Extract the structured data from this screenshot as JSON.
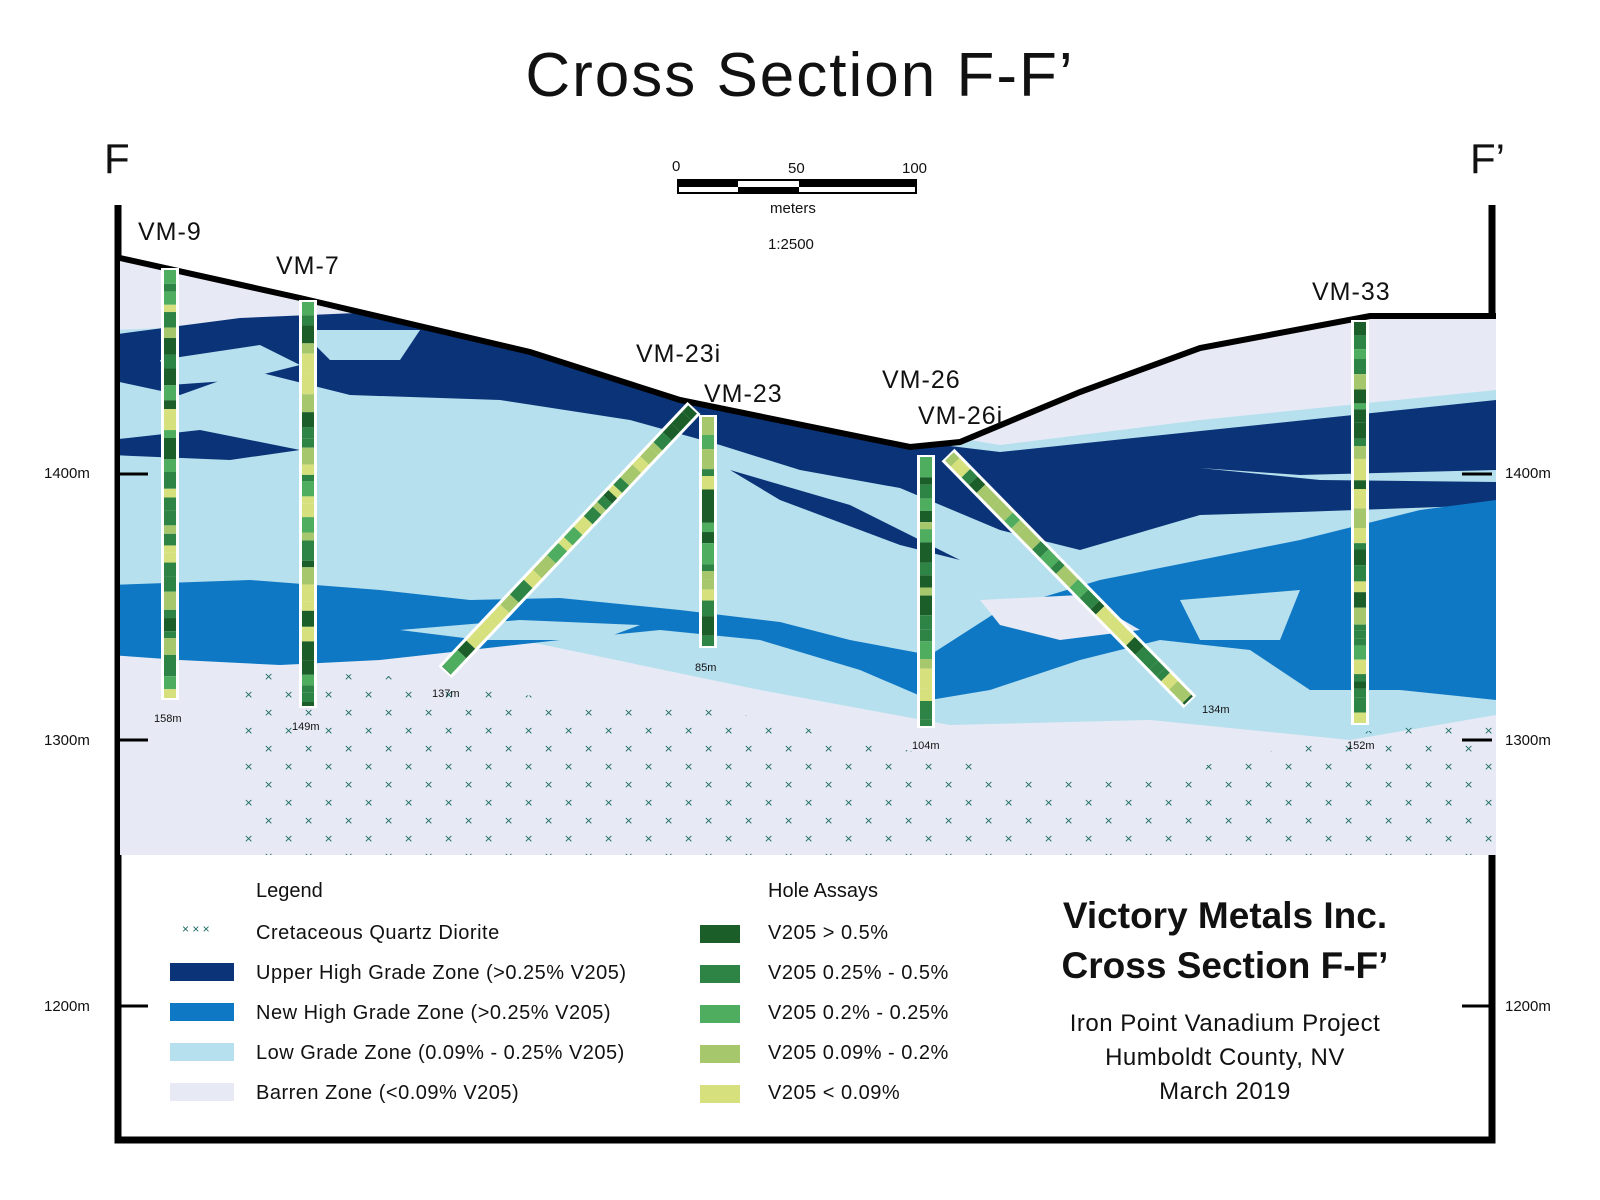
{
  "title": "Cross Section F-F’",
  "corners": {
    "left": "F",
    "right": "F’"
  },
  "scale": {
    "ticks": [
      "0",
      "50",
      "100"
    ],
    "unit": "meters",
    "ratio": "1:2500"
  },
  "elevations": [
    "1400m",
    "1300m",
    "1200m"
  ],
  "holes": [
    {
      "name": "VM-9",
      "depth": "158m"
    },
    {
      "name": "VM-7",
      "depth": "149m"
    },
    {
      "name": "VM-23i",
      "depth": "137m"
    },
    {
      "name": "VM-23",
      "depth": "85m"
    },
    {
      "name": "VM-26",
      "depth": "104m"
    },
    {
      "name": "VM-26i",
      "depth": "134m"
    },
    {
      "name": "VM-33",
      "depth": "152m"
    }
  ],
  "legend": {
    "title": "Legend",
    "items": [
      {
        "label": "Cretaceous Quartz Diorite"
      },
      {
        "label": "Upper High Grade Zone (>0.25% V205)",
        "color": "#0b3478"
      },
      {
        "label": "New High Grade Zone (>0.25% V205)",
        "color": "#0f78c4"
      },
      {
        "label": "Low Grade Zone (0.09% - 0.25% V205)",
        "color": "#b7e0ef"
      },
      {
        "label": "Barren Zone (<0.09% V205)",
        "color": "#e7eaf5"
      }
    ]
  },
  "assays": {
    "title": "Hole Assays",
    "items": [
      {
        "label": "V205 > 0.5%",
        "color": "#1b5e2a"
      },
      {
        "label": "V205 0.25% - 0.5%",
        "color": "#2e8444"
      },
      {
        "label": "V205 0.2% - 0.25%",
        "color": "#4fad5f"
      },
      {
        "label": "V205 0.09% - 0.2%",
        "color": "#a6c76c"
      },
      {
        "label": "V205 < 0.09%",
        "color": "#d6e07d"
      }
    ]
  },
  "company": {
    "line1": "Victory Metals Inc.",
    "line2": "Cross Section F-F’",
    "project": "Iron Point Vanadium Project",
    "county": "Humboldt County, NV",
    "date": "March 2019"
  }
}
